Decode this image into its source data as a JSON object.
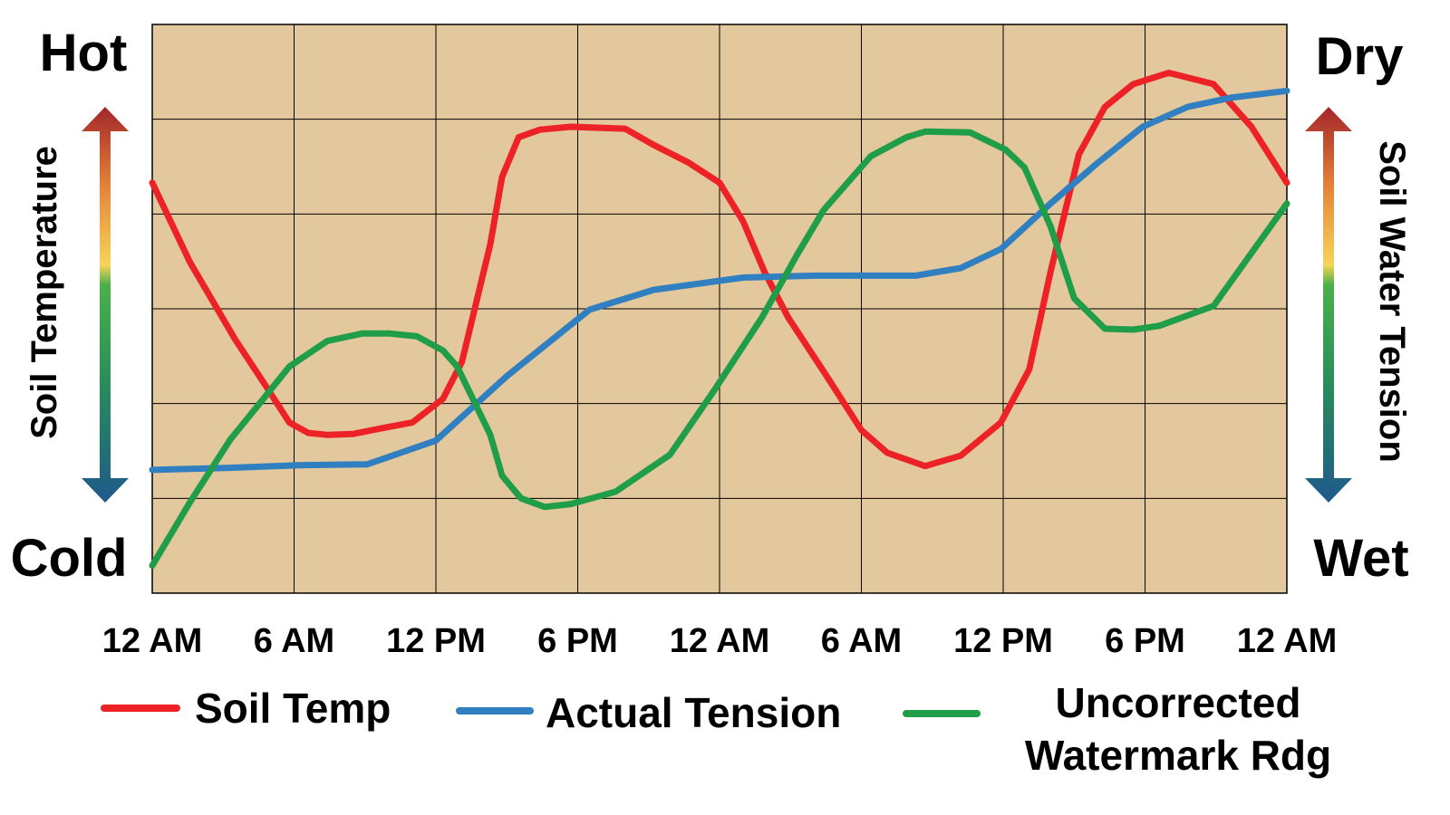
{
  "chart_data": {
    "type": "line",
    "title": "",
    "xlabel": "",
    "ylabel_left": "Soil Temperature",
    "ylabel_right": "Soil Water Tension",
    "left_top_label": "Hot",
    "left_bottom_label": "Cold",
    "right_top_label": "Dry",
    "right_bottom_label": "Wet",
    "x_unit": "hours",
    "xlim": [
      0,
      48
    ],
    "ylim": [
      0,
      6
    ],
    "x_ticks": [
      0,
      6,
      12,
      18,
      24,
      30,
      36,
      42,
      48
    ],
    "x_tick_labels": [
      "12 AM",
      "6 AM",
      "12 PM",
      "6 PM",
      "12 AM",
      "6 AM",
      "12 PM",
      "6 PM",
      "12 AM"
    ],
    "grid": true,
    "plot_background": "#e2c89c",
    "legend_position": "bottom",
    "series": [
      {
        "name": "Soil Temp",
        "color": "#ec2227",
        "x": [
          0,
          1.6,
          3.5,
          4.9,
          5.8,
          6.6,
          7.4,
          8.5,
          9.7,
          11.0,
          12.3,
          13.1,
          14.3,
          14.8,
          15.5,
          16.4,
          17.7,
          20.0,
          21.2,
          22.7,
          24.0,
          25.0,
          25.9,
          26.9,
          28.4,
          30.0,
          31.1,
          32.7,
          34.2,
          35.9,
          37.1,
          38.0,
          39.2,
          40.3,
          41.5,
          43.0,
          44.9,
          46.5,
          48
        ],
        "y": [
          4.33,
          3.49,
          2.68,
          2.15,
          1.8,
          1.69,
          1.67,
          1.68,
          1.74,
          1.8,
          2.05,
          2.44,
          3.68,
          4.39,
          4.81,
          4.89,
          4.92,
          4.9,
          4.73,
          4.54,
          4.33,
          3.92,
          3.39,
          2.91,
          2.34,
          1.72,
          1.48,
          1.34,
          1.45,
          1.8,
          2.36,
          3.39,
          4.63,
          5.13,
          5.37,
          5.49,
          5.37,
          4.92,
          4.33
        ]
      },
      {
        "name": "Actual Tension",
        "color": "#2f7fc1",
        "x": [
          0,
          3.1,
          6.2,
          9.1,
          12.0,
          15.0,
          18.5,
          21.2,
          25.0,
          28.1,
          32.3,
          34.2,
          35.9,
          38.0,
          40.0,
          41.9,
          43.8,
          45.7,
          48
        ],
        "y": [
          1.3,
          1.32,
          1.35,
          1.36,
          1.61,
          2.29,
          2.99,
          3.2,
          3.33,
          3.35,
          3.35,
          3.43,
          3.63,
          4.11,
          4.54,
          4.92,
          5.13,
          5.23,
          5.3
        ]
      },
      {
        "name": "Uncorrected Watermark Rdg",
        "name_lines": [
          "Uncorrected",
          "Watermark Rdg"
        ],
        "color": "#1f9d48",
        "x": [
          0,
          1.6,
          3.3,
          4.7,
          5.8,
          7.4,
          8.9,
          10.0,
          11.2,
          12.3,
          12.9,
          14.3,
          14.8,
          15.6,
          16.6,
          17.7,
          19.6,
          21.9,
          23.8,
          25.8,
          27.3,
          28.4,
          30.4,
          31.9,
          32.7,
          34.6,
          36.1,
          36.9,
          38.0,
          39.0,
          40.3,
          41.5,
          42.6,
          44.9,
          48
        ],
        "y": [
          0.29,
          0.96,
          1.62,
          2.05,
          2.39,
          2.66,
          2.74,
          2.74,
          2.71,
          2.56,
          2.39,
          1.67,
          1.24,
          1.0,
          0.91,
          0.94,
          1.07,
          1.46,
          2.15,
          2.91,
          3.58,
          4.04,
          4.61,
          4.81,
          4.87,
          4.86,
          4.68,
          4.49,
          3.87,
          3.11,
          2.79,
          2.78,
          2.82,
          3.03,
          4.11
        ]
      }
    ]
  }
}
